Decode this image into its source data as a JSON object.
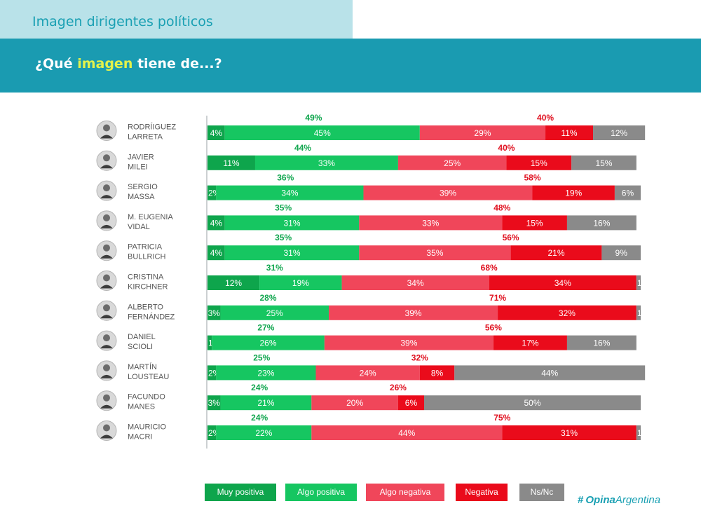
{
  "header": {
    "tab_title": "Imagen dirigentes políticos",
    "question_prefix": "¿Qué ",
    "question_highlight": "imagen",
    "question_suffix": " tiene de...?"
  },
  "colors": {
    "muy_positiva": "#0ea54c",
    "algo_positiva": "#16c661",
    "algo_negativa": "#f0465a",
    "negativa": "#ea0b1b",
    "ns_nc": "#8a8a8a",
    "total_positiva_text": "#10a64e",
    "total_negativa_text": "#e0101f"
  },
  "chart_data": {
    "type": "bar",
    "orientation": "horizontal",
    "stacked": true,
    "xlim": [
      0,
      100
    ],
    "categories": [
      "RODRÍIGUEZ LARRETA",
      "JAVIER MILEI",
      "SERGIO MASSA",
      "M. EUGENIA VIDAL",
      "PATRICIA BULLRICH",
      "CRISTINA KIRCHNER",
      "ALBERTO FERNÁNDEZ",
      "DANIEL SCIOLI",
      "MARTÍN LOUSTEAU",
      "FACUNDO MANES",
      "MAURICIO MACRI"
    ],
    "category_lines": [
      [
        "RODRÍIGUEZ",
        "LARRETA"
      ],
      [
        "JAVIER",
        "MILEI"
      ],
      [
        "SERGIO",
        "MASSA"
      ],
      [
        "M. EUGENIA",
        "VIDAL"
      ],
      [
        "PATRICIA",
        "BULLRICH"
      ],
      [
        "CRISTINA",
        "KIRCHNER"
      ],
      [
        "ALBERTO",
        "FERNÁNDEZ"
      ],
      [
        "DANIEL",
        "SCIOLI"
      ],
      [
        "MARTÍN",
        "LOUSTEAU"
      ],
      [
        "FACUNDO",
        "MANES"
      ],
      [
        "MAURICIO",
        "MACRI"
      ]
    ],
    "series": [
      {
        "name": "Muy positiva",
        "color_key": "muy_positiva",
        "values": [
          4,
          11,
          2,
          4,
          4,
          12,
          3,
          1,
          2,
          3,
          2
        ]
      },
      {
        "name": "Algo positiva",
        "color_key": "algo_positiva",
        "values": [
          45,
          33,
          34,
          31,
          31,
          19,
          25,
          26,
          23,
          21,
          22
        ]
      },
      {
        "name": "Algo negativa",
        "color_key": "algo_negativa",
        "values": [
          29,
          25,
          39,
          33,
          35,
          34,
          39,
          39,
          24,
          20,
          44
        ]
      },
      {
        "name": "Negativa",
        "color_key": "negativa",
        "values": [
          11,
          15,
          19,
          15,
          21,
          34,
          32,
          17,
          8,
          6,
          31
        ]
      },
      {
        "name": "Ns/Nc",
        "color_key": "ns_nc",
        "values": [
          12,
          15,
          6,
          16,
          9,
          1,
          1,
          16,
          44,
          50,
          1
        ]
      }
    ],
    "total_positiva": [
      49,
      44,
      36,
      35,
      35,
      31,
      28,
      27,
      25,
      24,
      24
    ],
    "total_negativa": [
      40,
      40,
      58,
      48,
      56,
      68,
      71,
      56,
      32,
      26,
      75
    ]
  },
  "legend": [
    "Muy positiva",
    "Algo positiva",
    "Algo negativa",
    "Negativa",
    "Ns/Nc"
  ],
  "logo": {
    "mark": "#",
    "bold": "Opina",
    "light": "Argentina"
  }
}
